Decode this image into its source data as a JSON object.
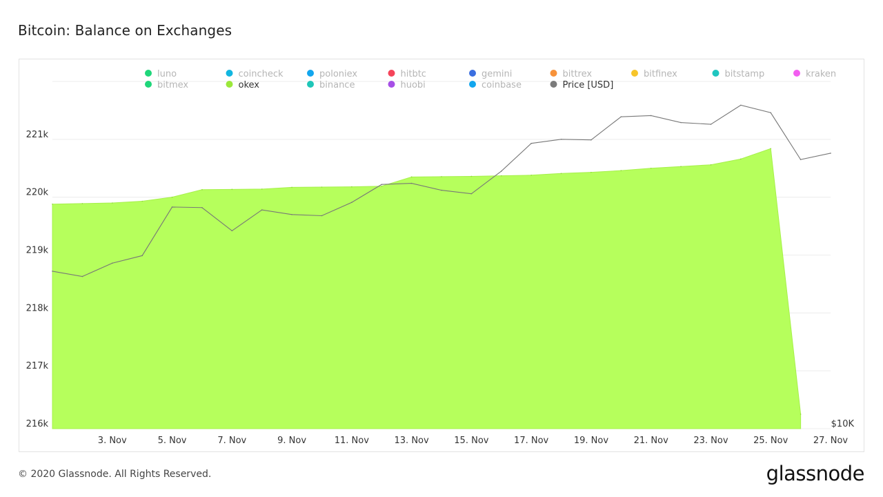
{
  "page": {
    "title": "Bitcoin: Balance on Exchanges",
    "copyright": "© 2020 Glassnode. All Rights Reserved.",
    "logo_text": "glassnode",
    "watermark": "glassnode"
  },
  "legend": [
    {
      "label": "luno",
      "color": "#1fd67a",
      "active": false
    },
    {
      "label": "coincheck",
      "color": "#12b6e0",
      "active": false
    },
    {
      "label": "poloniex",
      "color": "#12a6ee",
      "active": false
    },
    {
      "label": "hitbtc",
      "color": "#f5445a",
      "active": false
    },
    {
      "label": "gemini",
      "color": "#3b6fe0",
      "active": false
    },
    {
      "label": "bittrex",
      "color": "#f7923a",
      "active": false
    },
    {
      "label": "bitfinex",
      "color": "#f7c52a",
      "active": false
    },
    {
      "label": "bitstamp",
      "color": "#1fc6c0",
      "active": false
    },
    {
      "label": "kraken",
      "color": "#f25ef0",
      "active": false
    },
    {
      "label": "bitmex",
      "color": "#1fd67a",
      "active": false
    },
    {
      "label": "okex",
      "color": "#9be83a",
      "active": true
    },
    {
      "label": "binance",
      "color": "#1fc6b8",
      "active": false
    },
    {
      "label": "huobi",
      "color": "#a64fe6",
      "active": false
    },
    {
      "label": "coinbase",
      "color": "#12a6ee",
      "active": false
    },
    {
      "label": "Price [USD]",
      "color": "#7a7a7a",
      "active": true
    }
  ],
  "chart_data": {
    "type": "area",
    "title": "Bitcoin: Balance on Exchanges",
    "x_tick_labels": [
      "3. Nov",
      "5. Nov",
      "7. Nov",
      "9. Nov",
      "11. Nov",
      "13. Nov",
      "15. Nov",
      "17. Nov",
      "19. Nov",
      "21. Nov",
      "23. Nov",
      "25. Nov",
      "27. Nov"
    ],
    "x_tick_days": [
      3,
      5,
      7,
      9,
      11,
      13,
      15,
      17,
      19,
      21,
      23,
      25,
      27
    ],
    "xlim": [
      1,
      27
    ],
    "y_left": {
      "ticks": [
        216000,
        217000,
        218000,
        219000,
        220000,
        221000
      ],
      "tick_labels": [
        "216k",
        "217k",
        "218k",
        "219k",
        "220k",
        "221k"
      ],
      "ylim": [
        216000,
        222000
      ]
    },
    "y_right": {
      "tick_labels": [
        "$10K"
      ],
      "log_scale": true
    },
    "grid": true,
    "series": [
      {
        "name": "okex",
        "kind": "area",
        "axis": "left",
        "color": "#b6ff5c",
        "x": [
          1,
          2,
          3,
          4,
          5,
          6,
          7,
          8,
          9,
          10,
          11,
          12,
          13,
          14,
          15,
          16,
          17,
          18,
          19,
          20,
          21,
          22,
          23,
          24,
          25,
          26
        ],
        "values": [
          219880,
          219890,
          219900,
          219930,
          220000,
          220130,
          220135,
          220140,
          220170,
          220175,
          220180,
          220190,
          220350,
          220355,
          220360,
          220370,
          220380,
          220410,
          220430,
          220460,
          220500,
          220530,
          220560,
          220660,
          220840,
          216250
        ]
      },
      {
        "name": "Price [USD]",
        "kind": "line",
        "axis": "right",
        "color": "#777777",
        "x": [
          1,
          2,
          3,
          4,
          5,
          6,
          7,
          8,
          9,
          10,
          11,
          12,
          13,
          14,
          15,
          16,
          17,
          18,
          19,
          20,
          21,
          22,
          23,
          24,
          25,
          26,
          27
        ],
        "values_on_left_scale": [
          218720,
          218630,
          218860,
          218990,
          219830,
          219820,
          219420,
          219780,
          219700,
          219680,
          219910,
          220220,
          220240,
          220120,
          220060,
          220450,
          220930,
          221000,
          220990,
          221390,
          221410,
          221290,
          221260,
          221590,
          221460,
          220650,
          220760
        ]
      }
    ]
  }
}
